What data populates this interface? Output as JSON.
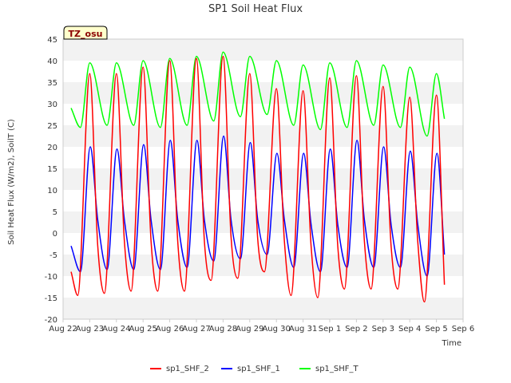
{
  "chart_data": {
    "type": "line",
    "title": "SP1 Soil Heat Flux",
    "xlabel": "Time",
    "ylabel": "Soil Heat Flux (W/m2), SoilT (C)",
    "badge": "TZ_osu",
    "ylim": [
      -20,
      45
    ],
    "yticks": [
      -20,
      -15,
      -10,
      -5,
      0,
      5,
      10,
      15,
      20,
      25,
      30,
      35,
      40,
      45
    ],
    "xlim": [
      0,
      15
    ],
    "xticks": [
      {
        "x": 0,
        "label": "Aug 22"
      },
      {
        "x": 1,
        "label": "Aug 23"
      },
      {
        "x": 2,
        "label": "Aug 24"
      },
      {
        "x": 3,
        "label": "Aug 25"
      },
      {
        "x": 4,
        "label": "Aug 26"
      },
      {
        "x": 5,
        "label": "Aug 27"
      },
      {
        "x": 6,
        "label": "Aug 28"
      },
      {
        "x": 7,
        "label": "Aug 29"
      },
      {
        "x": 8,
        "label": "Aug 30"
      },
      {
        "x": 9,
        "label": "Aug 31"
      },
      {
        "x": 10,
        "label": "Sep 1"
      },
      {
        "x": 11,
        "label": "Sep 2"
      },
      {
        "x": 12,
        "label": "Sep 3"
      },
      {
        "x": 13,
        "label": "Sep 4"
      },
      {
        "x": 14,
        "label": "Sep 5"
      },
      {
        "x": 15,
        "label": "Sep 6"
      }
    ],
    "grid": "horizontal bands",
    "legend_position": "bottom",
    "series": [
      {
        "name": "sp1_SHF_2",
        "color": "#ff0000",
        "x": [
          0.3,
          0.55,
          1.0,
          1.3,
          1.55,
          2.0,
          2.3,
          2.55,
          3.0,
          3.3,
          3.55,
          4.0,
          4.3,
          4.55,
          5.0,
          5.3,
          5.55,
          6.0,
          6.3,
          6.55,
          7.0,
          7.3,
          7.55,
          8.0,
          8.3,
          8.55,
          9.0,
          9.3,
          9.55,
          10.0,
          10.3,
          10.55,
          11.0,
          11.3,
          11.55,
          12.0,
          12.3,
          12.55,
          13.0,
          13.3,
          13.55,
          14.0,
          14.3
        ],
        "y": [
          -9,
          -14.5,
          37,
          -3,
          -14,
          37,
          -2,
          -13.5,
          38.5,
          -2,
          -13.5,
          40,
          -2,
          -13.5,
          40.5,
          -2,
          -11,
          41,
          -1,
          -10.5,
          37,
          -1.5,
          -9,
          33.5,
          -2,
          -14.5,
          33,
          -3,
          -15,
          36,
          -3,
          -13,
          36.5,
          -2,
          -13,
          34,
          -3,
          -13,
          31.5,
          -2,
          -16,
          32,
          -12
        ]
      },
      {
        "name": "sp1_SHF_1",
        "color": "#0000ff",
        "x": [
          0.3,
          0.65,
          1.02,
          1.3,
          1.65,
          2.02,
          2.3,
          2.65,
          3.02,
          3.3,
          3.65,
          4.02,
          4.3,
          4.65,
          5.02,
          5.3,
          5.65,
          6.02,
          6.3,
          6.65,
          7.02,
          7.3,
          7.65,
          8.02,
          8.3,
          8.65,
          9.02,
          9.3,
          9.65,
          10.02,
          10.3,
          10.65,
          11.02,
          11.3,
          11.65,
          12.02,
          12.3,
          12.65,
          13.02,
          13.3,
          13.65,
          14.02,
          14.3
        ],
        "y": [
          -3,
          -9,
          20,
          3,
          -8.5,
          19.5,
          3,
          -8.5,
          20.5,
          3,
          -8.5,
          21.5,
          3,
          -8,
          21.5,
          3,
          -6.5,
          22.5,
          3,
          -6,
          21,
          3,
          -5,
          18.5,
          3,
          -8,
          18.5,
          2,
          -9,
          19.5,
          2,
          -8,
          21.5,
          3,
          -8,
          20,
          2,
          -8,
          19,
          2,
          -10,
          18.5,
          -5
        ]
      },
      {
        "name": "sp1_SHF_T",
        "color": "#00ff00",
        "x": [
          0.3,
          0.65,
          1.0,
          1.65,
          2.0,
          2.65,
          3.0,
          3.65,
          4.0,
          4.65,
          5.0,
          5.65,
          6.0,
          6.65,
          7.0,
          7.65,
          8.0,
          8.65,
          9.0,
          9.65,
          10.0,
          10.65,
          11.0,
          11.65,
          12.0,
          12.65,
          13.0,
          13.65,
          14.0,
          14.3
        ],
        "y": [
          29,
          24.5,
          39.5,
          25,
          39.5,
          25,
          40,
          24.5,
          40.5,
          25,
          41,
          26,
          42,
          27,
          41,
          27.5,
          40,
          25,
          39,
          24,
          39.5,
          24.5,
          40,
          25,
          39,
          24.5,
          38.5,
          22.5,
          37,
          26.5
        ]
      }
    ]
  }
}
